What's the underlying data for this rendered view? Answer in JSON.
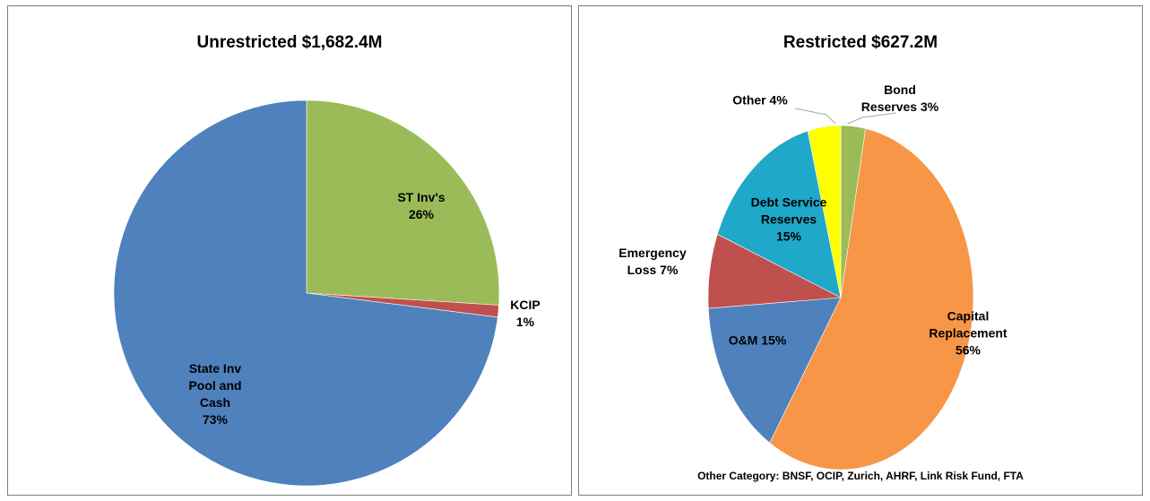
{
  "chart_data": [
    {
      "type": "pie",
      "title": "Unrestricted $1,682.4M",
      "categories": [
        "ST Inv's",
        "KCIP",
        "State Inv Pool and Cash"
      ],
      "values": [
        26,
        1,
        73
      ],
      "value_labels": [
        "26%",
        "1%",
        "73%"
      ],
      "colors": [
        "#9bbb59",
        "#c0504d",
        "#4f81bd"
      ]
    },
    {
      "type": "pie",
      "title": "Restricted $627.2M",
      "categories": [
        "Bond Reserves",
        "Capital Replacement",
        "O&M",
        "Emergency Loss",
        "Debt Service Reserves",
        "Other"
      ],
      "values": [
        3,
        56,
        15,
        7,
        15,
        4
      ],
      "value_labels": [
        "3%",
        "56%",
        "15%",
        "7%",
        "15%",
        "4%"
      ],
      "colors": [
        "#9bbb59",
        "#f79646",
        "#4f81bd",
        "#c0504d",
        "#1fa8c9",
        "#ffff00"
      ],
      "note": "Other Category: BNSF, OCIP, Zurich, AHRF, Link Risk Fund, FTA"
    }
  ]
}
